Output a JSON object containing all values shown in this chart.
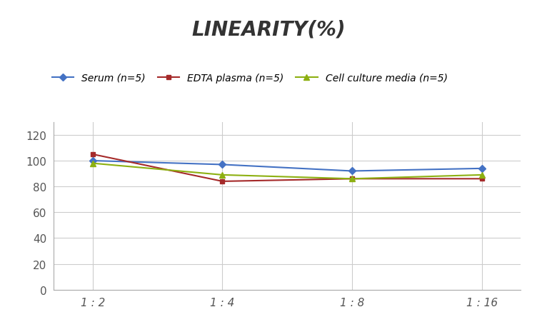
{
  "title": "LINEARITY(%)",
  "x_labels": [
    "1 : 2",
    "1 : 4",
    "1 : 8",
    "1 : 16"
  ],
  "x_positions": [
    0,
    1,
    2,
    3
  ],
  "series": [
    {
      "label": "Serum (n=5)",
      "values": [
        100,
        97,
        92,
        94
      ],
      "color": "#4472C4",
      "marker": "D",
      "marker_size": 5
    },
    {
      "label": "EDTA plasma (n=5)",
      "values": [
        105,
        84,
        86,
        86
      ],
      "color": "#A52A2A",
      "marker": "s",
      "marker_size": 5
    },
    {
      "label": "Cell culture media (n=5)",
      "values": [
        98,
        89,
        86,
        89
      ],
      "color": "#8DB011",
      "marker": "^",
      "marker_size": 6
    }
  ],
  "ylim": [
    0,
    130
  ],
  "yticks": [
    0,
    20,
    40,
    60,
    80,
    100,
    120
  ],
  "background_color": "#FFFFFF",
  "grid_color": "#CCCCCC",
  "title_fontsize": 20,
  "legend_fontsize": 10,
  "tick_fontsize": 11
}
